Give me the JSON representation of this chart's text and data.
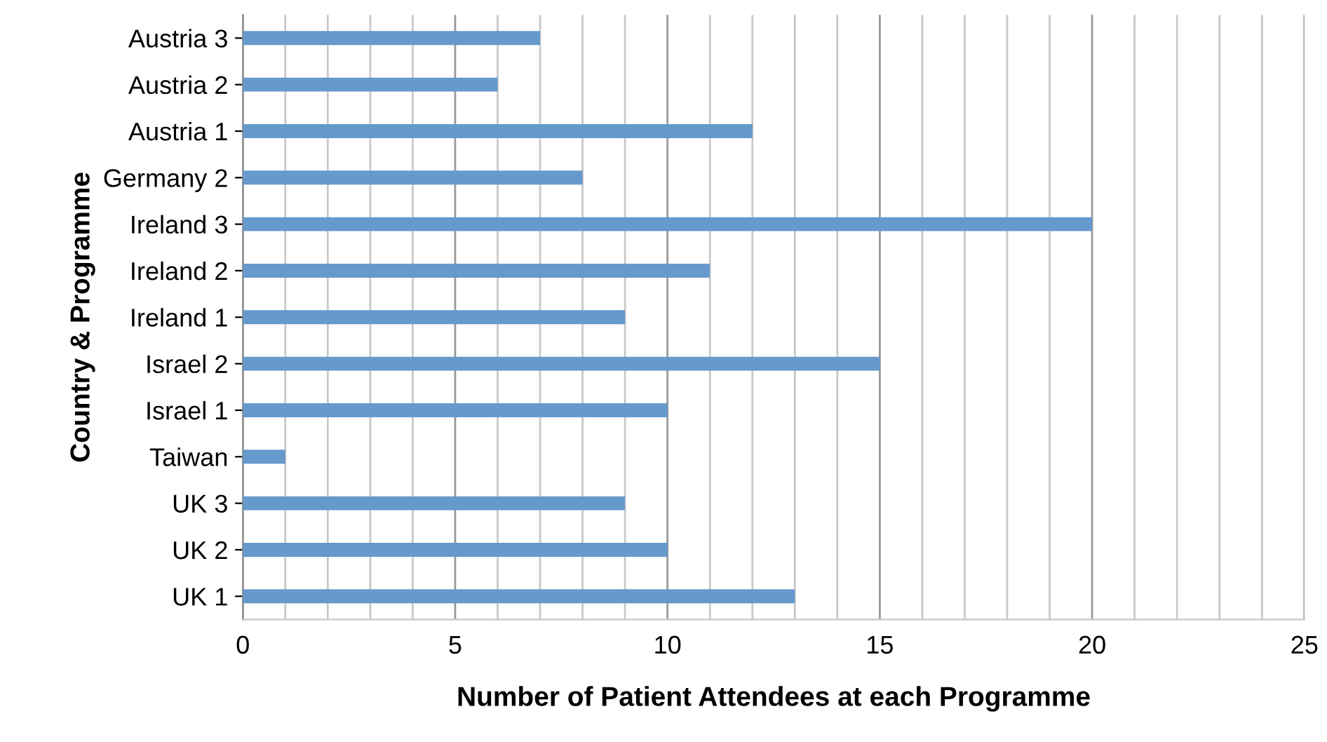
{
  "chart_data": {
    "type": "bar",
    "orientation": "horizontal",
    "xlabel": "Number of Patient Attendees at each Programme",
    "ylabel": "Country & Programme",
    "categories": [
      "Austria 3",
      "Austria 2",
      "Austria 1",
      "Germany 2",
      "Ireland 3",
      "Ireland 2",
      "Ireland 1",
      "Israel 2",
      "Israel 1",
      "Taiwan",
      "UK 3",
      "UK 2",
      "UK 1"
    ],
    "values": [
      7,
      6,
      12,
      8,
      20,
      11,
      9,
      15,
      10,
      1,
      9,
      10,
      13
    ],
    "color": "#6699cc",
    "xlim": [
      0,
      25
    ],
    "xticks": [
      0,
      {
        "value": 1,
        "label": null
      },
      {
        "value": 2,
        "label": null
      },
      {
        "value": 3,
        "label": null
      },
      {
        "value": 4,
        "label": null
      },
      5,
      {
        "value": 6,
        "label": null
      },
      {
        "value": 7,
        "label": null
      },
      {
        "value": 8,
        "label": null
      },
      {
        "value": 9,
        "label": null
      },
      10,
      {
        "value": 11,
        "label": null
      },
      {
        "value": 12,
        "label": null
      },
      {
        "value": 13,
        "label": null
      },
      {
        "value": 14,
        "label": null
      },
      15,
      {
        "value": 16,
        "label": null
      },
      {
        "value": 17,
        "label": null
      },
      {
        "value": 18,
        "label": null
      },
      {
        "value": 19,
        "label": null
      },
      20,
      {
        "value": 21,
        "label": null
      },
      {
        "value": 22,
        "label": null
      },
      {
        "value": 23,
        "label": null
      },
      {
        "value": 24,
        "label": null
      },
      25
    ],
    "grid": "x",
    "legend": false
  }
}
